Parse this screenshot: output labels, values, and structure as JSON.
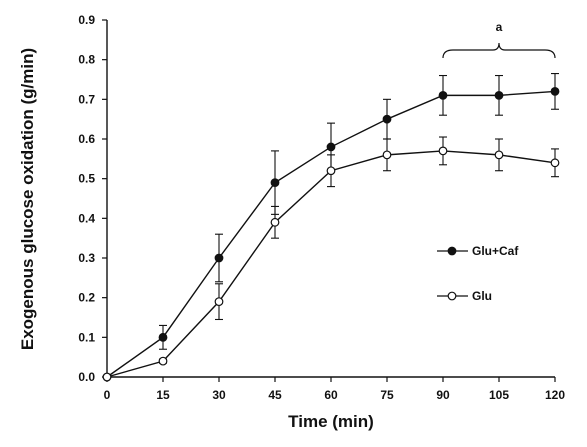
{
  "chart_data": {
    "type": "line",
    "title": "",
    "xlabel": "Time (min)",
    "ylabel": "Exogenous glucose oxidation (g/min)",
    "x": [
      0,
      15,
      30,
      45,
      60,
      75,
      90,
      105,
      120
    ],
    "x_ticks": [
      "0",
      "15",
      "30",
      "45",
      "60",
      "75",
      "90",
      "105",
      "120"
    ],
    "y_ticks": [
      "0.0",
      "0.1",
      "0.2",
      "0.3",
      "0.4",
      "0.5",
      "0.6",
      "0.7",
      "0.8",
      "0.9"
    ],
    "xlim": [
      0,
      120
    ],
    "ylim": [
      0,
      0.9
    ],
    "grid": false,
    "legend_position": "right",
    "series": [
      {
        "name": "Glu+Caf",
        "marker": "filled-circle",
        "color": "#111111",
        "values": [
          0.0,
          0.1,
          0.3,
          0.49,
          0.58,
          0.65,
          0.71,
          0.71,
          0.72
        ],
        "errors": [
          0.0,
          0.03,
          0.06,
          0.08,
          0.06,
          0.05,
          0.05,
          0.05,
          0.045
        ]
      },
      {
        "name": "Glu",
        "marker": "open-circle",
        "color": "#111111",
        "values": [
          0.0,
          0.04,
          0.19,
          0.39,
          0.52,
          0.56,
          0.57,
          0.56,
          0.54
        ],
        "errors": [
          0.0,
          0.005,
          0.045,
          0.04,
          0.04,
          0.04,
          0.035,
          0.04,
          0.035
        ]
      }
    ],
    "annotations": [
      {
        "text": "a",
        "x_start": 90,
        "x_end": 120,
        "type": "bracket"
      }
    ]
  }
}
